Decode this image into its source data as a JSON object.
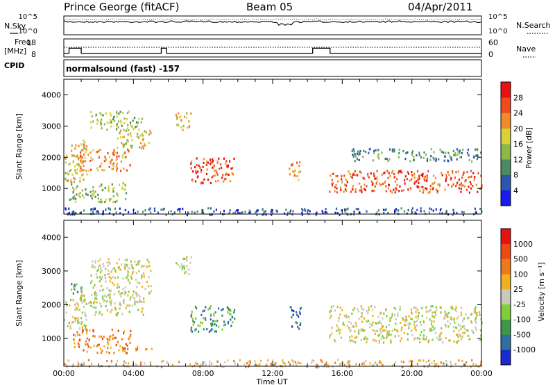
{
  "header": {
    "station": "Prince George (fitACF)",
    "beam": "Beam 05",
    "date": "04/Apr/2011"
  },
  "noise_panel": {
    "left_label": "N.Sky",
    "right_label": "N.Search",
    "left_ticks": [
      "10^5",
      "10^0"
    ],
    "right_ticks": [
      "10^5",
      "10^0"
    ]
  },
  "freq_panel": {
    "left_label_line1": "Freq.",
    "left_label_line2": "[MHz]",
    "left_ticks": [
      "18",
      "8"
    ],
    "right_label": "Nave",
    "right_ticks": [
      "60",
      "0"
    ],
    "cpid_label": "CPID"
  },
  "cpid_text": "normalsound (fast) -157",
  "chart_data": [
    {
      "type": "heatmap",
      "panel": "power",
      "ylabel": "Slant Range [km]",
      "yticks": [
        "4000",
        "3000",
        "2000",
        "1000"
      ],
      "ylim": [
        180,
        4500
      ],
      "xlim": [
        0,
        24
      ],
      "colorbar_label": "Power [dB]",
      "colorbar_ticks": [
        "28",
        "24",
        "20",
        "16",
        "12",
        "8",
        "4"
      ],
      "colors": [
        "#1a1aee",
        "#2a58b0",
        "#4b8a62",
        "#8ab84a",
        "#d7d23a",
        "#f08c28",
        "#f04a1e",
        "#e81010"
      ],
      "scatter_regions": [
        {
          "t0": 0.0,
          "t1": 1.3,
          "r0": 1200,
          "r1": 2600,
          "level": 4
        },
        {
          "t0": 0.3,
          "t1": 3.6,
          "r0": 600,
          "r1": 1200,
          "level": 3
        },
        {
          "t0": 0.8,
          "t1": 3.8,
          "r0": 1600,
          "r1": 2300,
          "level": 5
        },
        {
          "t0": 1.5,
          "t1": 4.5,
          "r0": 2900,
          "r1": 3500,
          "level": 3
        },
        {
          "t0": 3.0,
          "t1": 5.0,
          "r0": 2300,
          "r1": 2900,
          "level": 4
        },
        {
          "t0": 6.4,
          "t1": 7.3,
          "r0": 2900,
          "r1": 3500,
          "level": 4
        },
        {
          "t0": 7.2,
          "t1": 9.8,
          "r0": 1200,
          "r1": 2000,
          "level": 6
        },
        {
          "t0": 12.9,
          "t1": 13.6,
          "r0": 1300,
          "r1": 1900,
          "level": 5
        },
        {
          "t0": 15.2,
          "t1": 24.0,
          "r0": 900,
          "r1": 1600,
          "level": 6
        },
        {
          "t0": 16.5,
          "t1": 24.0,
          "r0": 1900,
          "r1": 2300,
          "level": 2
        },
        {
          "t0": 0.0,
          "t1": 24.0,
          "r0": 180,
          "r1": 400,
          "level": 1
        }
      ]
    },
    {
      "type": "heatmap",
      "panel": "velocity",
      "ylabel": "Slant Range [km]",
      "yticks": [
        "4000",
        "3000",
        "2000",
        "1000"
      ],
      "ylim": [
        180,
        4500
      ],
      "xlim": [
        0,
        24
      ],
      "xticks": [
        "00:00",
        "04:00",
        "08:00",
        "12:00",
        "16:00",
        "20:00",
        "00:00"
      ],
      "xlabel": "Time UT",
      "colorbar_label": "Velocity [m s⁻¹]",
      "colorbar_ticks": [
        "1000",
        "500",
        "100",
        "25",
        "-25",
        "-100",
        "-500",
        "-1000"
      ],
      "colors": [
        "#1a2ad0",
        "#2e6ea0",
        "#3e9848",
        "#7fce3c",
        "#c8c8bc",
        "#f0b020",
        "#f07818",
        "#ee4a14",
        "#e81010"
      ],
      "scatter_regions": [
        {
          "t0": 0.0,
          "t1": 1.3,
          "r0": 1300,
          "r1": 2200,
          "level": 4
        },
        {
          "t0": 0.3,
          "t1": 1.0,
          "r0": 2200,
          "r1": 2700,
          "level": 2
        },
        {
          "t0": 0.5,
          "t1": 3.8,
          "r0": 600,
          "r1": 1300,
          "level": 6
        },
        {
          "t0": 0.9,
          "t1": 4.6,
          "r0": 1700,
          "r1": 2400,
          "level": 4
        },
        {
          "t0": 1.5,
          "t1": 5.0,
          "r0": 2300,
          "r1": 3400,
          "level": 4
        },
        {
          "t0": 4.0,
          "t1": 5.2,
          "r0": 650,
          "r1": 800,
          "level": 6
        },
        {
          "t0": 6.4,
          "t1": 7.3,
          "r0": 2900,
          "r1": 3500,
          "level": 4
        },
        {
          "t0": 7.2,
          "t1": 9.8,
          "r0": 1200,
          "r1": 2000,
          "level": 2
        },
        {
          "t0": 12.9,
          "t1": 13.6,
          "r0": 1300,
          "r1": 2000,
          "level": 1
        },
        {
          "t0": 15.2,
          "t1": 24.0,
          "r0": 900,
          "r1": 2000,
          "level": 4
        },
        {
          "t0": 0.0,
          "t1": 24.0,
          "r0": 180,
          "r1": 400,
          "level": 5
        }
      ]
    }
  ]
}
